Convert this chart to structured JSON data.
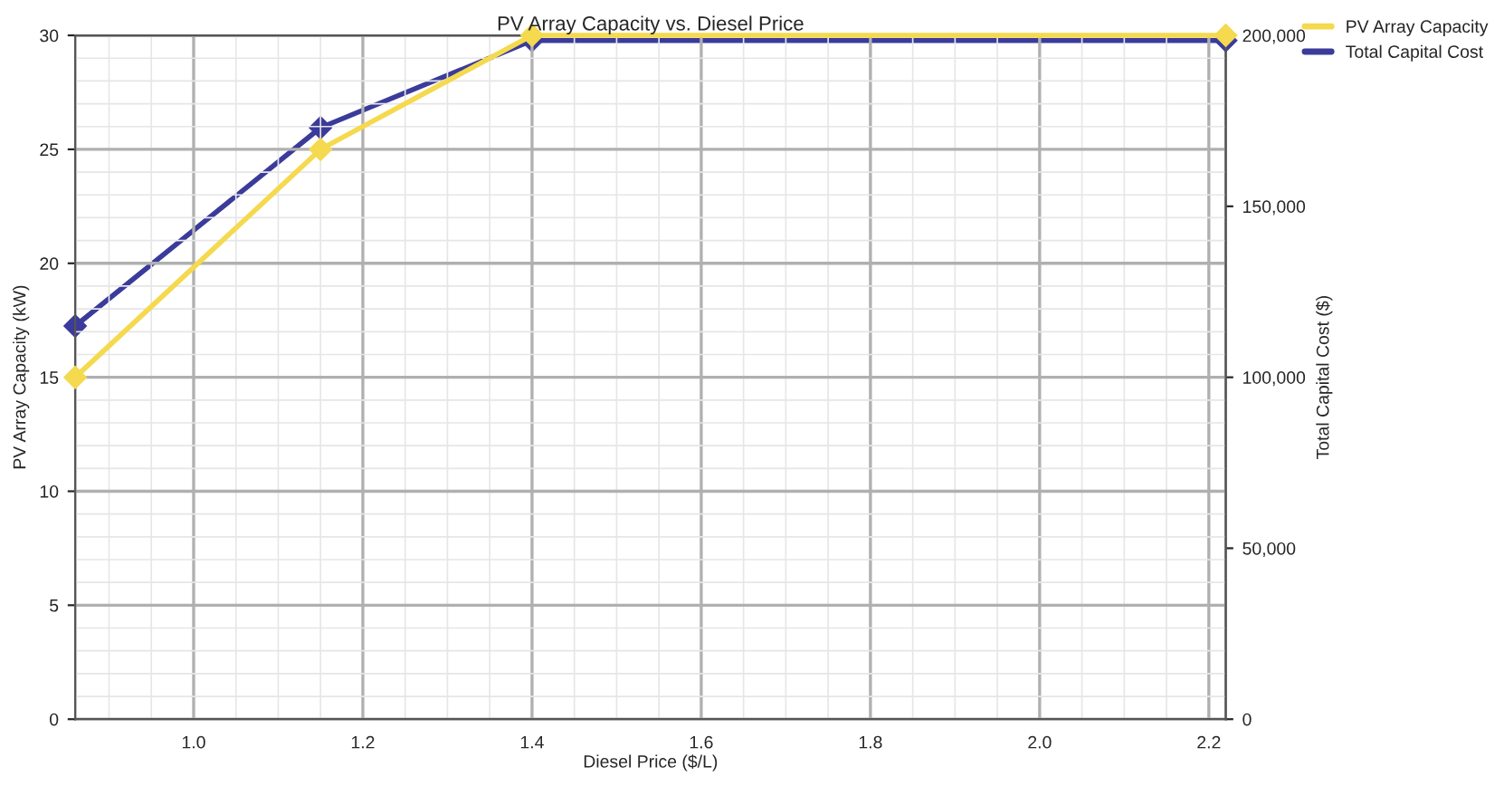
{
  "chart_data": {
    "type": "line",
    "title": "PV Array Capacity vs. Diesel Price",
    "xlabel": "Diesel Price ($/L)",
    "ylabel": "PV Array Capacity (kW)",
    "y2label": "Total Capital Cost ($)",
    "x": [
      0.86,
      1.15,
      1.4,
      2.22
    ],
    "series": [
      {
        "name": "PV Array Capacity",
        "color": "#f5d94e",
        "values": [
          15,
          25,
          30,
          30
        ]
      },
      {
        "name": "Total Capital Cost",
        "color": "#3b3b9b",
        "values": [
          115000,
          173000,
          198500,
          198500
        ],
        "axis": "y2"
      }
    ],
    "xlim": [
      0.86,
      2.22
    ],
    "xticks": [
      {
        "value": 1.0,
        "label": "1.0"
      },
      {
        "value": 1.2,
        "label": "1.2"
      },
      {
        "value": 1.4,
        "label": "1.4"
      },
      {
        "value": 1.6,
        "label": "1.6"
      },
      {
        "value": 1.8,
        "label": "1.8"
      },
      {
        "value": 2.0,
        "label": "2.0"
      },
      {
        "value": 2.2,
        "label": "2.2"
      }
    ],
    "ylim": [
      0,
      30
    ],
    "yticks": [
      0,
      5,
      10,
      15,
      20,
      25,
      30
    ],
    "y2lim": [
      0,
      200000
    ],
    "y2ticks": [
      {
        "value": 0,
        "label": "0"
      },
      {
        "value": 50000,
        "label": "50,000"
      },
      {
        "value": 100000,
        "label": "100,000"
      },
      {
        "value": 150000,
        "label": "150,000"
      },
      {
        "value": 200000,
        "label": "200,000"
      }
    ],
    "grid": true,
    "legend": "top right",
    "marker": "diamond",
    "line_style": "solid"
  }
}
